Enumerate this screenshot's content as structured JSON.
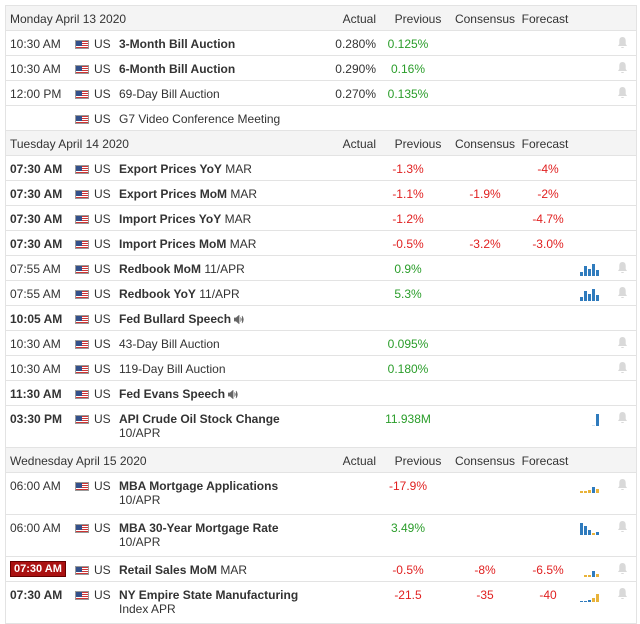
{
  "colors": {
    "accent_bar": "#2f7bbd",
    "light_bar": "#e8b33a",
    "red": "#e02020",
    "green": "#2a9d2a"
  },
  "headers": {
    "actual": "Actual",
    "previous": "Previous",
    "consensus": "Consensus",
    "forecast": "Forecast"
  },
  "days": [
    {
      "date": "Monday April 13 2020",
      "events": [
        {
          "time": "10:30 AM",
          "country": "US",
          "name": "3-Month Bill Auction",
          "sub": "",
          "actual": "0.280%",
          "previous": "0.125%",
          "prev_color": "green",
          "consensus": "",
          "forecast": "",
          "bold_time": false,
          "bold_name": true,
          "speaker": false,
          "chart": "",
          "bell": true,
          "tall": false,
          "badge": false
        },
        {
          "time": "10:30 AM",
          "country": "US",
          "name": "6-Month Bill Auction",
          "sub": "",
          "actual": "0.290%",
          "previous": "0.16%",
          "prev_color": "green",
          "consensus": "",
          "forecast": "",
          "bold_time": false,
          "bold_name": true,
          "speaker": false,
          "chart": "",
          "bell": true,
          "tall": false,
          "badge": false
        },
        {
          "time": "12:00 PM",
          "country": "US",
          "name": "69-Day Bill Auction",
          "sub": "",
          "actual": "0.270%",
          "previous": "0.135%",
          "prev_color": "green",
          "consensus": "",
          "forecast": "",
          "bold_time": false,
          "bold_name": false,
          "speaker": false,
          "chart": "",
          "bell": true,
          "tall": false,
          "badge": false
        },
        {
          "time": "",
          "country": "US",
          "name": "G7 Video Conference Meeting",
          "sub": "",
          "actual": "",
          "previous": "",
          "prev_color": "",
          "consensus": "",
          "forecast": "",
          "bold_time": false,
          "bold_name": false,
          "speaker": false,
          "chart": "",
          "bell": false,
          "tall": false,
          "badge": false
        }
      ]
    },
    {
      "date": "Tuesday April 14 2020",
      "events": [
        {
          "time": "07:30 AM",
          "country": "US",
          "name": "Export Prices YoY",
          "sub": "MAR",
          "actual": "",
          "previous": "-1.3%",
          "prev_color": "red",
          "consensus": "",
          "forecast": "-4%",
          "bold_time": true,
          "bold_name": true,
          "speaker": false,
          "chart": "",
          "bell": false,
          "tall": false,
          "badge": false
        },
        {
          "time": "07:30 AM",
          "country": "US",
          "name": "Export Prices MoM",
          "sub": "MAR",
          "actual": "",
          "previous": "-1.1%",
          "prev_color": "red",
          "consensus": "-1.9%",
          "forecast": "-2%",
          "bold_time": true,
          "bold_name": true,
          "speaker": false,
          "chart": "",
          "bell": false,
          "tall": false,
          "badge": false
        },
        {
          "time": "07:30 AM",
          "country": "US",
          "name": "Import Prices YoY",
          "sub": "MAR",
          "actual": "",
          "previous": "-1.2%",
          "prev_color": "red",
          "consensus": "",
          "forecast": "-4.7%",
          "bold_time": true,
          "bold_name": true,
          "speaker": false,
          "chart": "",
          "bell": false,
          "tall": false,
          "badge": false
        },
        {
          "time": "07:30 AM",
          "country": "US",
          "name": "Import Prices MoM",
          "sub": "MAR",
          "actual": "",
          "previous": "-0.5%",
          "prev_color": "red",
          "consensus": "-3.2%",
          "forecast": "-3.0%",
          "bold_time": true,
          "bold_name": true,
          "speaker": false,
          "chart": "",
          "bell": false,
          "tall": false,
          "badge": false
        },
        {
          "time": "07:55 AM",
          "country": "US",
          "name": "Redbook MoM",
          "sub": "11/APR",
          "actual": "",
          "previous": "0.9%",
          "prev_color": "green",
          "consensus": "",
          "forecast": "",
          "bold_time": false,
          "bold_name": true,
          "speaker": false,
          "chart": "bars-blue",
          "bell": true,
          "tall": false,
          "badge": false
        },
        {
          "time": "07:55 AM",
          "country": "US",
          "name": "Redbook YoY",
          "sub": "11/APR",
          "actual": "",
          "previous": "5.3%",
          "prev_color": "green",
          "consensus": "",
          "forecast": "",
          "bold_time": false,
          "bold_name": true,
          "speaker": false,
          "chart": "bars-blue",
          "bell": true,
          "tall": false,
          "badge": false
        },
        {
          "time": "10:05 AM",
          "country": "US",
          "name": "Fed Bullard Speech",
          "sub": "",
          "actual": "",
          "previous": "",
          "prev_color": "",
          "consensus": "",
          "forecast": "",
          "bold_time": true,
          "bold_name": true,
          "speaker": true,
          "chart": "",
          "bell": false,
          "tall": false,
          "badge": false
        },
        {
          "time": "10:30 AM",
          "country": "US",
          "name": "43-Day Bill Auction",
          "sub": "",
          "actual": "",
          "previous": "0.095%",
          "prev_color": "green",
          "consensus": "",
          "forecast": "",
          "bold_time": false,
          "bold_name": false,
          "speaker": false,
          "chart": "",
          "bell": true,
          "tall": false,
          "badge": false
        },
        {
          "time": "10:30 AM",
          "country": "US",
          "name": "119-Day Bill Auction",
          "sub": "",
          "actual": "",
          "previous": "0.180%",
          "prev_color": "green",
          "consensus": "",
          "forecast": "",
          "bold_time": false,
          "bold_name": false,
          "speaker": false,
          "chart": "",
          "bell": true,
          "tall": false,
          "badge": false
        },
        {
          "time": "11:30 AM",
          "country": "US",
          "name": "Fed Evans Speech",
          "sub": "",
          "actual": "",
          "previous": "",
          "prev_color": "",
          "consensus": "",
          "forecast": "",
          "bold_time": true,
          "bold_name": true,
          "speaker": true,
          "chart": "",
          "bell": false,
          "tall": false,
          "badge": false
        },
        {
          "time": "03:30 PM",
          "country": "US",
          "name": "API Crude Oil Stock Change",
          "sub": "10/APR",
          "actual": "",
          "previous": "11.938M",
          "prev_color": "green",
          "consensus": "",
          "forecast": "",
          "bold_time": true,
          "bold_name": true,
          "speaker": false,
          "chart": "bars-single",
          "bell": true,
          "tall": true,
          "badge": false
        }
      ]
    },
    {
      "date": "Wednesday April 15 2020",
      "events": [
        {
          "time": "06:00 AM",
          "country": "US",
          "name": "MBA Mortgage Applications",
          "sub": "10/APR",
          "actual": "",
          "previous": "-17.9%",
          "prev_color": "red",
          "consensus": "",
          "forecast": "",
          "bold_time": false,
          "bold_name": true,
          "speaker": false,
          "chart": "bars-mixed",
          "bell": true,
          "tall": true,
          "badge": false
        },
        {
          "time": "06:00 AM",
          "country": "US",
          "name": "MBA 30-Year Mortgage Rate",
          "sub": "10/APR",
          "actual": "",
          "previous": "3.49%",
          "prev_color": "green",
          "consensus": "",
          "forecast": "",
          "bold_time": false,
          "bold_name": true,
          "speaker": false,
          "chart": "bars-blue2",
          "bell": true,
          "tall": true,
          "badge": false
        },
        {
          "time": "07:30 AM",
          "country": "US",
          "name": "Retail Sales MoM",
          "sub": "MAR",
          "actual": "",
          "previous": "-0.5%",
          "prev_color": "red",
          "consensus": "-8%",
          "forecast": "-6.5%",
          "bold_time": true,
          "bold_name": true,
          "speaker": false,
          "chart": "bars-mixed2",
          "bell": true,
          "tall": false,
          "badge": true
        },
        {
          "time": "07:30 AM",
          "country": "US",
          "name": "NY Empire State Manufacturing",
          "sub": "Index APR",
          "actual": "",
          "previous": "-21.5",
          "prev_color": "red",
          "consensus": "-35",
          "forecast": "-40",
          "bold_time": true,
          "bold_name": true,
          "speaker": false,
          "chart": "bars-mixed3",
          "bell": true,
          "tall": true,
          "badge": false
        }
      ]
    }
  ]
}
